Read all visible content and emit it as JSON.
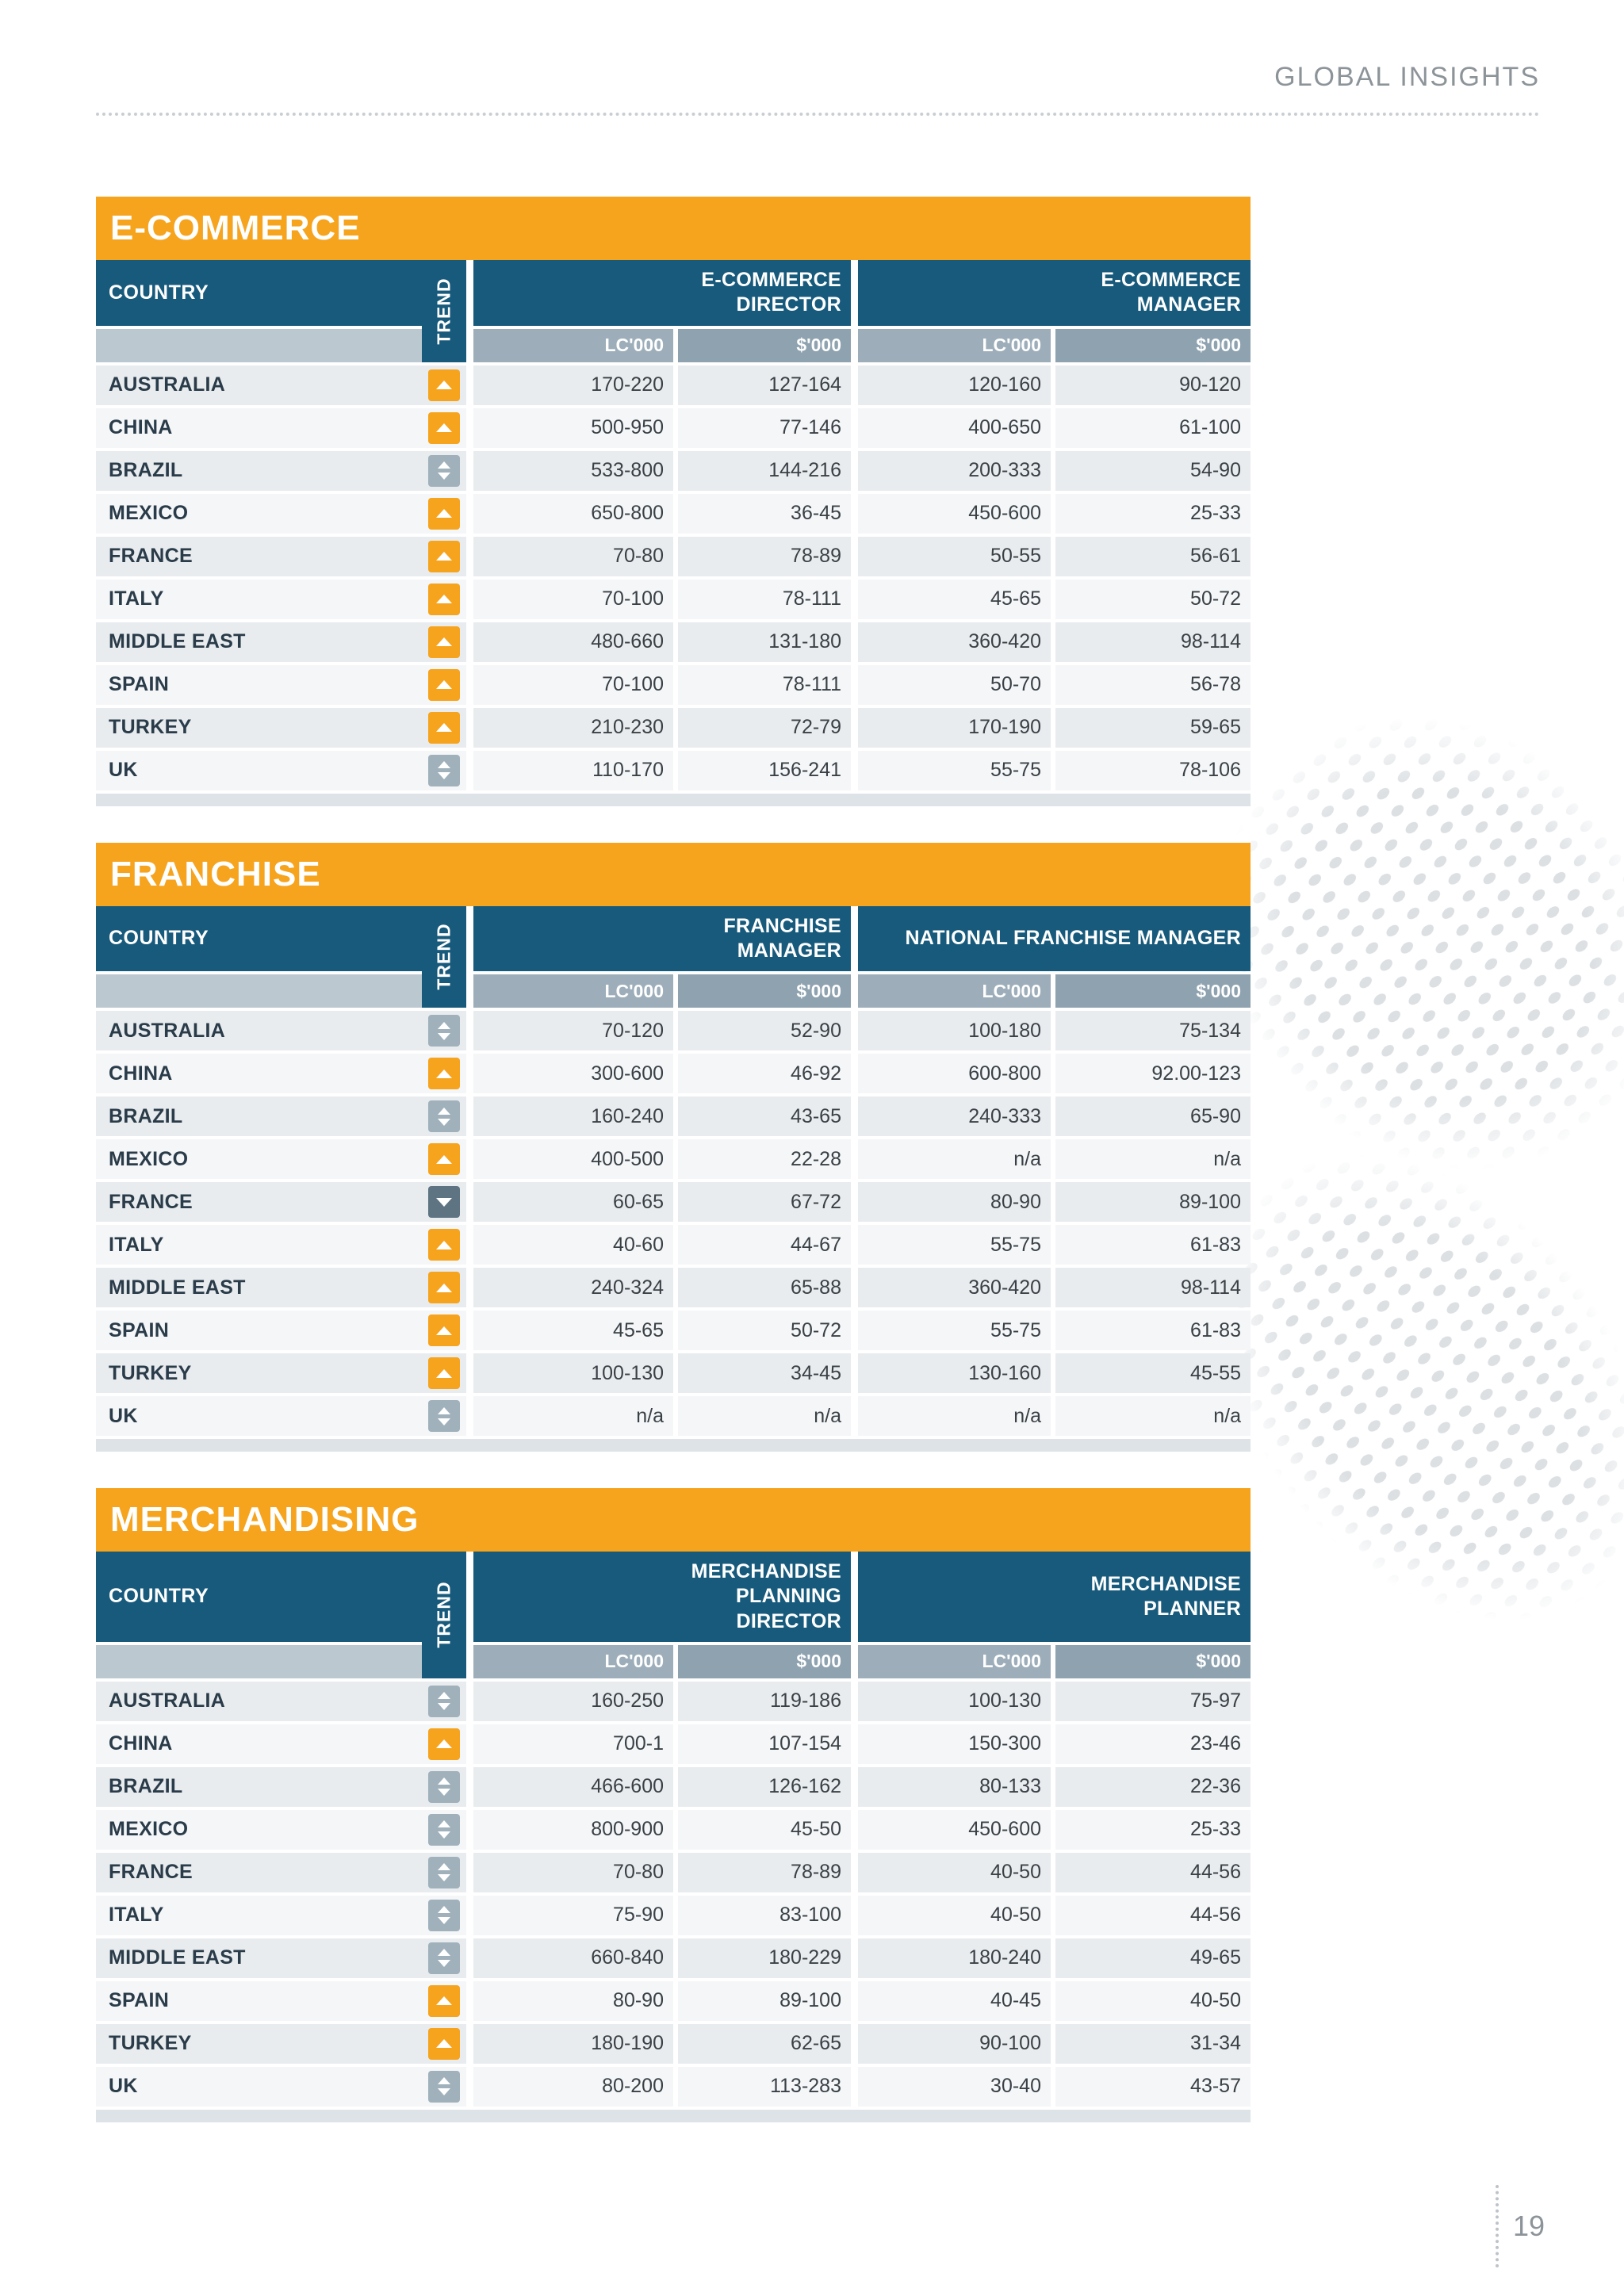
{
  "page": {
    "header": "GLOBAL INSIGHTS",
    "page_number": "19"
  },
  "labels": {
    "country": "COUNTRY",
    "trend": "TREND",
    "lc": "LC'000",
    "usd": "$'000"
  },
  "tables": [
    {
      "title": "E-COMMERCE",
      "role1": "E-COMMERCE\nDIRECTOR",
      "role2": "E-COMMERCE\nMANAGER",
      "rows": [
        {
          "country": "AUSTRALIA",
          "trend": "up",
          "values": [
            "170-220",
            "127-164",
            "120-160",
            "90-120"
          ]
        },
        {
          "country": "CHINA",
          "trend": "up",
          "values": [
            "500-950",
            "77-146",
            "400-650",
            "61-100"
          ]
        },
        {
          "country": "BRAZIL",
          "trend": "both",
          "values": [
            "533-800",
            "144-216",
            "200-333",
            "54-90"
          ]
        },
        {
          "country": "MEXICO",
          "trend": "up",
          "values": [
            "650-800",
            "36-45",
            "450-600",
            "25-33"
          ]
        },
        {
          "country": "FRANCE",
          "trend": "up",
          "values": [
            "70-80",
            "78-89",
            "50-55",
            "56-61"
          ]
        },
        {
          "country": "ITALY",
          "trend": "up",
          "values": [
            "70-100",
            "78-111",
            "45-65",
            "50-72"
          ]
        },
        {
          "country": "MIDDLE EAST",
          "trend": "up",
          "values": [
            "480-660",
            "131-180",
            "360-420",
            "98-114"
          ]
        },
        {
          "country": "SPAIN",
          "trend": "up",
          "values": [
            "70-100",
            "78-111",
            "50-70",
            "56-78"
          ]
        },
        {
          "country": "TURKEY",
          "trend": "up",
          "values": [
            "210-230",
            "72-79",
            "170-190",
            "59-65"
          ]
        },
        {
          "country": "UK",
          "trend": "both",
          "values": [
            "110-170",
            "156-241",
            "55-75",
            "78-106"
          ]
        }
      ]
    },
    {
      "title": "FRANCHISE",
      "role1": "FRANCHISE\nMANAGER",
      "role2": "NATIONAL FRANCHISE MANAGER",
      "rows": [
        {
          "country": "AUSTRALIA",
          "trend": "both",
          "values": [
            "70-120",
            "52-90",
            "100-180",
            "75-134"
          ]
        },
        {
          "country": "CHINA",
          "trend": "up",
          "values": [
            "300-600",
            "46-92",
            "600-800",
            "92.00-123"
          ]
        },
        {
          "country": "BRAZIL",
          "trend": "both",
          "values": [
            "160-240",
            "43-65",
            "240-333",
            "65-90"
          ]
        },
        {
          "country": "MEXICO",
          "trend": "up",
          "values": [
            "400-500",
            "22-28",
            "n/a",
            "n/a"
          ]
        },
        {
          "country": "FRANCE",
          "trend": "down",
          "values": [
            "60-65",
            "67-72",
            "80-90",
            "89-100"
          ]
        },
        {
          "country": "ITALY",
          "trend": "up",
          "values": [
            "40-60",
            "44-67",
            "55-75",
            "61-83"
          ]
        },
        {
          "country": "MIDDLE EAST",
          "trend": "up",
          "values": [
            "240-324",
            "65-88",
            "360-420",
            "98-114"
          ]
        },
        {
          "country": "SPAIN",
          "trend": "up",
          "values": [
            "45-65",
            "50-72",
            "55-75",
            "61-83"
          ]
        },
        {
          "country": "TURKEY",
          "trend": "up",
          "values": [
            "100-130",
            "34-45",
            "130-160",
            "45-55"
          ]
        },
        {
          "country": "UK",
          "trend": "both",
          "values": [
            "n/a",
            "n/a",
            "n/a",
            "n/a"
          ]
        }
      ]
    },
    {
      "title": "MERCHANDISING",
      "role1": "MERCHANDISE\nPLANNING\nDIRECTOR",
      "role2": "MERCHANDISE\nPLANNER",
      "rows": [
        {
          "country": "AUSTRALIA",
          "trend": "both",
          "values": [
            "160-250",
            "119-186",
            "100-130",
            "75-97"
          ]
        },
        {
          "country": "CHINA",
          "trend": "up",
          "values": [
            "700-1",
            "107-154",
            "150-300",
            "23-46"
          ]
        },
        {
          "country": "BRAZIL",
          "trend": "both",
          "values": [
            "466-600",
            "126-162",
            "80-133",
            "22-36"
          ]
        },
        {
          "country": "MEXICO",
          "trend": "both",
          "values": [
            "800-900",
            "45-50",
            "450-600",
            "25-33"
          ]
        },
        {
          "country": "FRANCE",
          "trend": "both",
          "values": [
            "70-80",
            "78-89",
            "40-50",
            "44-56"
          ]
        },
        {
          "country": "ITALY",
          "trend": "both",
          "values": [
            "75-90",
            "83-100",
            "40-50",
            "44-56"
          ]
        },
        {
          "country": "MIDDLE EAST",
          "trend": "both",
          "values": [
            "660-840",
            "180-229",
            "180-240",
            "49-65"
          ]
        },
        {
          "country": "SPAIN",
          "trend": "up",
          "values": [
            "80-90",
            "89-100",
            "40-45",
            "40-50"
          ]
        },
        {
          "country": "TURKEY",
          "trend": "up",
          "values": [
            "180-190",
            "62-65",
            "90-100",
            "31-34"
          ]
        },
        {
          "country": "UK",
          "trend": "both",
          "values": [
            "80-200",
            "113-283",
            "30-40",
            "43-57"
          ]
        }
      ]
    }
  ]
}
